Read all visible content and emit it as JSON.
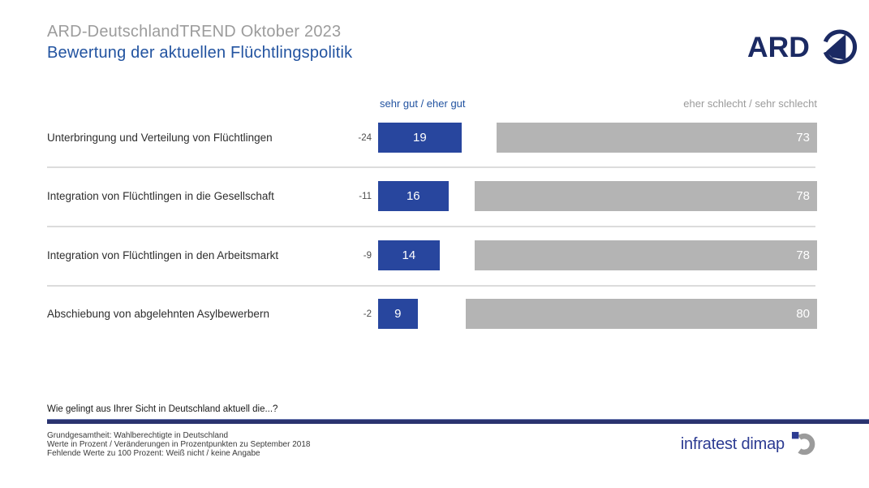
{
  "header": {
    "title": "ARD-DeutschlandTREND Oktober 2023",
    "subtitle": "Bewertung der aktuellen Flüchtlingspolitik",
    "ard_logo_text": "ARD"
  },
  "chart_data": {
    "type": "bar",
    "orientation": "horizontal",
    "title": "Bewertung der aktuellen Flüchtlingspolitik",
    "categories": [
      "Unterbringung und Verteilung von Flüchtlingen",
      "Integration von Flüchtlingen in die Gesellschaft",
      "Integration von Flüchtlingen in den Arbeitsmarkt",
      "Abschiebung von abgelehnten Asylbewerbern"
    ],
    "series": [
      {
        "name": "sehr gut / eher gut",
        "color": "#28469e",
        "values": [
          19,
          16,
          14,
          9
        ]
      },
      {
        "name": "eher schlecht / sehr schlecht",
        "color": "#b4b4b4",
        "values": [
          73,
          78,
          78,
          80
        ]
      }
    ],
    "changes": [
      -24,
      -11,
      -9,
      -2
    ],
    "changes_note": "Veränderungen in Prozentpunkten zu September 2018",
    "unit": "Prozent",
    "xlim": [
      0,
      100
    ],
    "value_labels": "inside",
    "legend_position": "top"
  },
  "question": "Wie gelingt aus Ihrer Sicht in Deutschland aktuell die...?",
  "footer": {
    "line1": "Grundgesamtheit: Wahlberechtigte in Deutschland",
    "line2": "Werte in Prozent / Veränderungen in Prozentpunkten zu September 2018",
    "line3": "Fehlende Werte zu 100 Prozent: Weiß nicht / keine Angabe",
    "brand": "infratest dimap"
  },
  "colors": {
    "positive_bar": "#28469e",
    "negative_bar": "#b4b4b4",
    "title_gray": "#9c9c9c",
    "accent_blue": "#2253a0",
    "ard_navy": "#1b2a63",
    "divider_navy": "#2a336f",
    "dimap_blue": "#2c3b92",
    "dimap_gray": "#9b9b9b"
  }
}
